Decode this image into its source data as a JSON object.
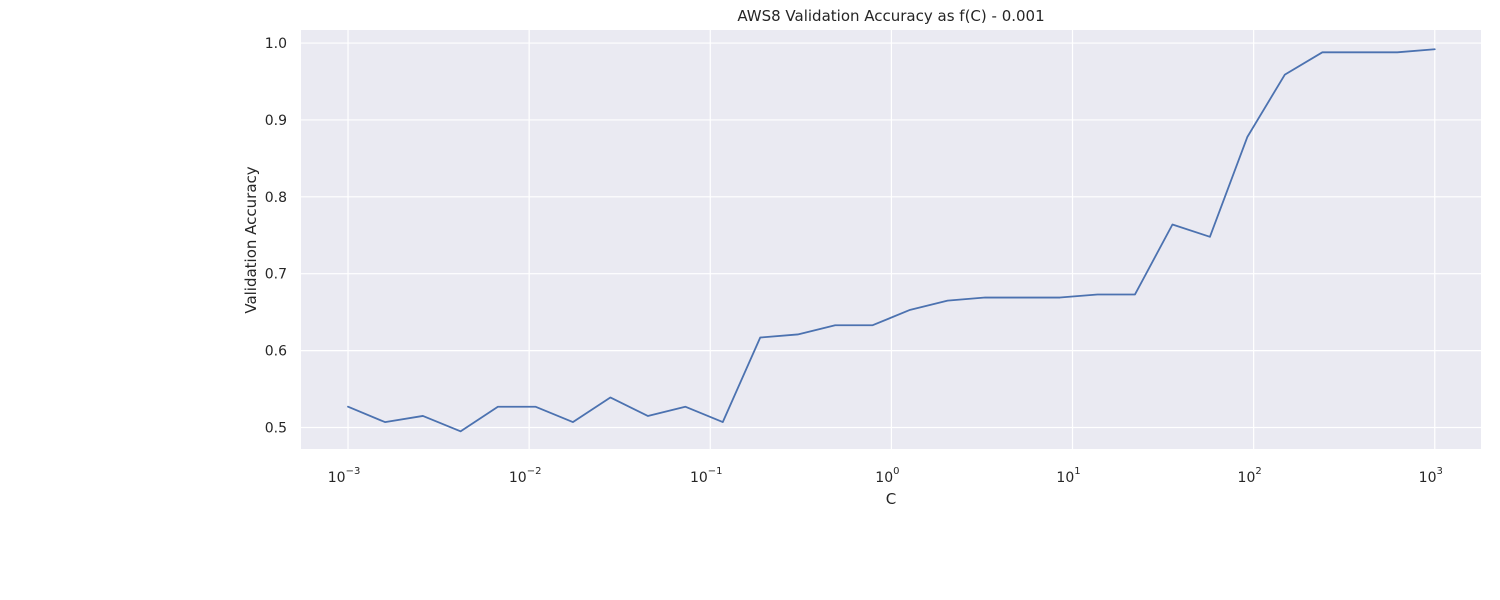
{
  "chart_data": {
    "type": "line",
    "title": "AWS8 Validation Accuracy as f(C) - 0.001",
    "xlabel": "C",
    "ylabel": "Validation Accuracy",
    "xscale": "log",
    "xlim": [
      0.00055,
      1800
    ],
    "ylim": [
      0.472,
      1.017
    ],
    "grid": true,
    "colors": {
      "background": "#eaeaf2",
      "grid": "#ffffff",
      "line": "#4c72b0",
      "text": "#262626"
    },
    "x_ticks": [
      {
        "value": 0.001,
        "base": "10",
        "exp": "−3"
      },
      {
        "value": 0.01,
        "base": "10",
        "exp": "−2"
      },
      {
        "value": 0.1,
        "base": "10",
        "exp": "−1"
      },
      {
        "value": 1,
        "base": "10",
        "exp": "0"
      },
      {
        "value": 10,
        "base": "10",
        "exp": "1"
      },
      {
        "value": 100,
        "base": "10",
        "exp": "2"
      },
      {
        "value": 1000,
        "base": "10",
        "exp": "3"
      }
    ],
    "y_ticks": [
      {
        "value": 0.5,
        "label": "0.5"
      },
      {
        "value": 0.6,
        "label": "0.6"
      },
      {
        "value": 0.7,
        "label": "0.7"
      },
      {
        "value": 0.8,
        "label": "0.8"
      },
      {
        "value": 0.9,
        "label": "0.9"
      },
      {
        "value": 1.0,
        "label": "1.0"
      }
    ],
    "series": [
      {
        "x": [
          0.001,
          0.0016,
          0.00259,
          0.00418,
          0.00672,
          0.01083,
          0.01743,
          0.02807,
          0.0452,
          0.07279,
          0.11721,
          0.18874,
          0.30392,
          0.48939,
          0.78805,
          1.26896,
          2.04336,
          3.29034,
          5.29832,
          8.53168,
          13.7382,
          22.1222,
          35.6225,
          57.3615,
          92.3671,
          148.735,
          239.503,
          385.662,
          621.017,
          1000
        ],
        "y": [
          0.527,
          0.507,
          0.515,
          0.495,
          0.527,
          0.527,
          0.507,
          0.539,
          0.515,
          0.527,
          0.507,
          0.617,
          0.621,
          0.633,
          0.633,
          0.653,
          0.665,
          0.669,
          0.669,
          0.669,
          0.673,
          0.673,
          0.764,
          0.748,
          0.878,
          0.959,
          0.988,
          0.988,
          0.988,
          0.992
        ]
      }
    ]
  }
}
